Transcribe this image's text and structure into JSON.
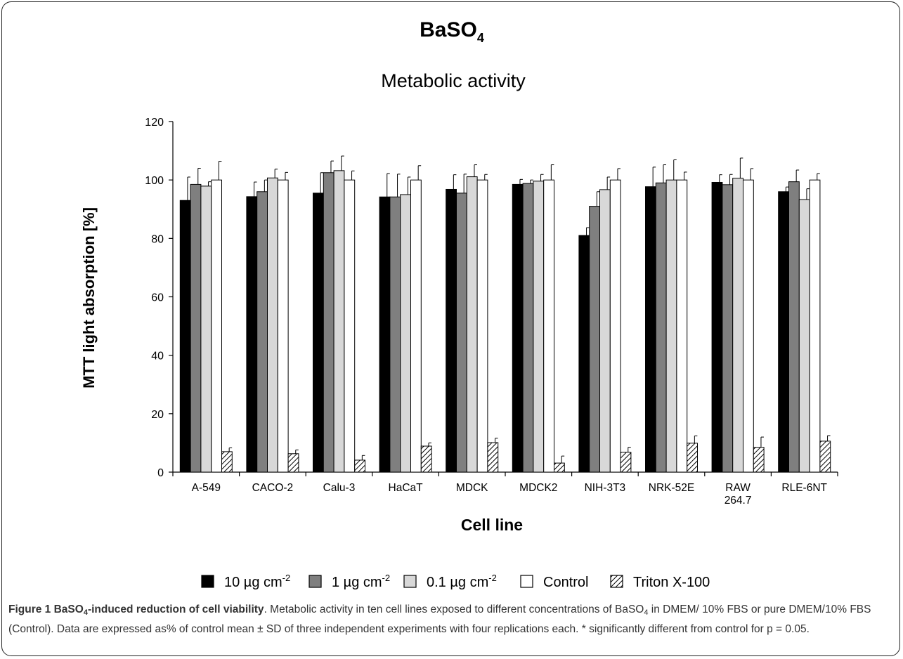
{
  "chart_data": {
    "type": "bar",
    "title": "BaSO",
    "title_subscript": "4",
    "subtitle": "Metabolic activity",
    "xlabel": "Cell line",
    "ylabel": "MTT light absorption [%]",
    "ylim": [
      0,
      120
    ],
    "yticks": [
      0,
      20,
      40,
      60,
      80,
      100,
      120
    ],
    "ytick_labels": [
      "0",
      "20",
      "40",
      "60",
      "80",
      "100",
      "120"
    ],
    "grid": false,
    "legend_position": "bottom",
    "categories": [
      "A-549",
      "CACO-2",
      "Calu-3",
      "HaCaT",
      "MDCK",
      "MDCK2",
      "NIH-3T3",
      "NRK-52E",
      "RAW 264.7",
      "RLE-6NT"
    ],
    "category_lines": [
      [
        "A-549"
      ],
      [
        "CACO-2"
      ],
      [
        "Calu-3"
      ],
      [
        "HaCaT"
      ],
      [
        "MDCK"
      ],
      [
        "MDCK2"
      ],
      [
        "NIH-3T3"
      ],
      [
        "NRK-52E"
      ],
      [
        "RAW",
        "264.7"
      ],
      [
        "RLE-6NT"
      ]
    ],
    "series": [
      {
        "name": "10 µg cm",
        "sup": "-2",
        "fill": "#000000",
        "pattern": false,
        "values": [
          93,
          94.3,
          95.5,
          94.2,
          96.8,
          98.5,
          81,
          97.7,
          99.2,
          96
        ],
        "errors": [
          8,
          5,
          7,
          8,
          5,
          1.7,
          2.7,
          6.7,
          2.6,
          1.6
        ]
      },
      {
        "name": "1 µg cm",
        "sup": "-2",
        "fill": "#7f7f7f",
        "pattern": false,
        "values": [
          98.5,
          96,
          102.5,
          94.2,
          95.5,
          98.8,
          91,
          99,
          98.4,
          99.4
        ],
        "errors": [
          5.5,
          4,
          4,
          7.8,
          6.5,
          1.2,
          5,
          6.2,
          3.5,
          4
        ]
      },
      {
        "name": "0.1 µg cm",
        "sup": "-2",
        "fill": "#d8d8d8",
        "pattern": false,
        "values": [
          97.9,
          100.7,
          103.2,
          95,
          101.1,
          99.6,
          96.7,
          100,
          100.6,
          93.3
        ],
        "errors": [
          1.5,
          3,
          5,
          6,
          4.1,
          2.3,
          4.3,
          6.9,
          6.9,
          3.7
        ]
      },
      {
        "name": "Control",
        "sup": "",
        "fill": "#ffffff",
        "pattern": false,
        "values": [
          100,
          100,
          100,
          100,
          100,
          100,
          100,
          100,
          100,
          100
        ],
        "errors": [
          6.4,
          2.6,
          3.1,
          4.9,
          1.9,
          5.2,
          3.9,
          2.7,
          3.9,
          2.2
        ]
      },
      {
        "name": "Triton X-100",
        "sup": "",
        "fill": "hatch",
        "pattern": true,
        "values": [
          7,
          6.3,
          4.1,
          8.9,
          10.1,
          3.1,
          6.8,
          9.9,
          8.5,
          10.6
        ],
        "errors": [
          1.3,
          1.3,
          1.6,
          1.1,
          1.5,
          2.4,
          1.7,
          2.5,
          3.5,
          1.9
        ]
      }
    ]
  },
  "caption": {
    "label": "Figure 1",
    "title_pre": " BaSO",
    "title_sub": "4",
    "title_post": "-induced reduction of cell viability",
    "text_pre": ". Metabolic activity in ten cell lines exposed to different concentrations of BaSO",
    "text_sub": "4",
    "text_post": " in DMEM/ 10% FBS or pure DMEM/10% FBS (Control). Data are expressed as% of control mean ± SD of three independent experiments with four replications each. * significantly different from control for p = 0.05."
  }
}
